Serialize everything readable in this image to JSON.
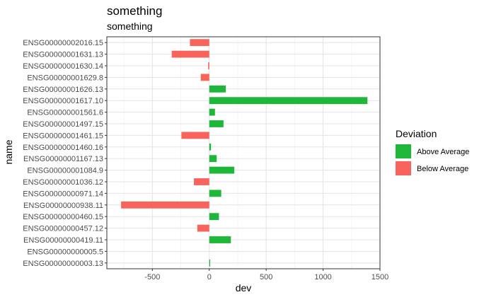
{
  "chart_data": {
    "type": "bar",
    "orientation": "horizontal",
    "title": "something",
    "subtitle": "something",
    "xlabel": "dev",
    "ylabel": "name",
    "xlim": [
      -900,
      1500
    ],
    "xticks": [
      -500,
      0,
      500,
      1000,
      1500
    ],
    "xtick_labels": [
      "-500",
      "0",
      "500",
      "1000",
      "1500"
    ],
    "grid": true,
    "legend": {
      "title": "Deviation",
      "position": "right",
      "entries": [
        {
          "label": "Above Average",
          "color": "#1fb73a"
        },
        {
          "label": "Below Average",
          "color": "#f8645c"
        }
      ]
    },
    "categories": [
      "ENSG00000002016.15",
      "ENSG00000001631.13",
      "ENSG00000001630.14",
      "ENSG00000001629.8",
      "ENSG00000001626.13",
      "ENSG00000001617.10",
      "ENSG00000001561.6",
      "ENSG00000001497.15",
      "ENSG00000001461.15",
      "ENSG00000001460.16",
      "ENSG00000001167.13",
      "ENSG00000001084.9",
      "ENSG00000001036.12",
      "ENSG00000000971.14",
      "ENSG00000000938.11",
      "ENSG00000000460.15",
      "ENSG00000000457.12",
      "ENSG00000000419.11",
      "ENSG00000000005.5",
      "ENSG00000000003.13"
    ],
    "values": [
      -170,
      -330,
      -10,
      -75,
      145,
      1390,
      50,
      125,
      -245,
      15,
      65,
      220,
      -135,
      105,
      -775,
      85,
      -105,
      190,
      0,
      8
    ],
    "colors": {
      "above": "#1fb73a",
      "below": "#f8645c"
    }
  }
}
